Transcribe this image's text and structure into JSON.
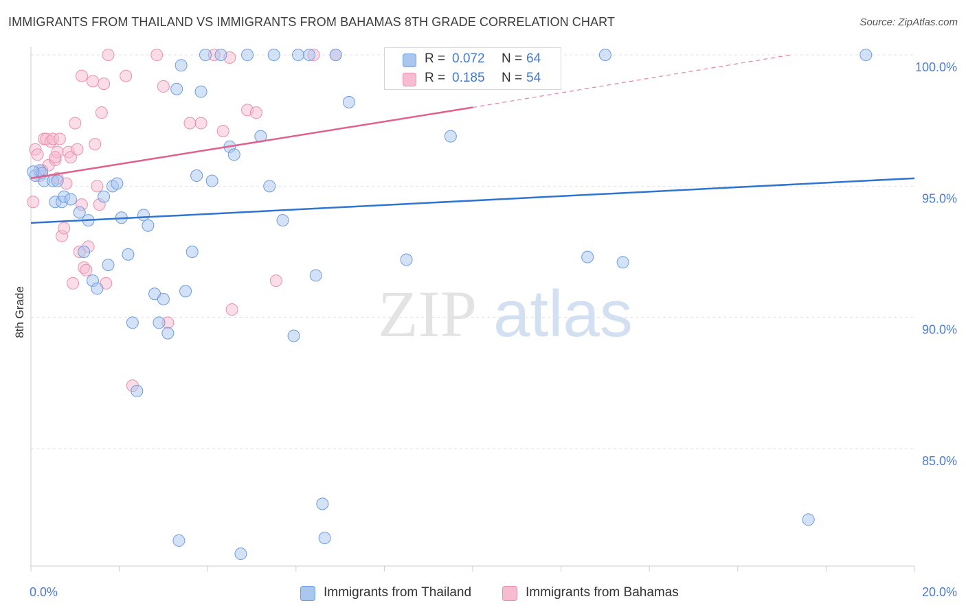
{
  "title": "IMMIGRANTS FROM THAILAND VS IMMIGRANTS FROM BAHAMAS 8TH GRADE CORRELATION CHART",
  "source": "Source: ZipAtlas.com",
  "watermark": {
    "zip": "ZIP",
    "atlas": "atlas"
  },
  "colors": {
    "thailand_fill": "#a9c6ef",
    "thailand_stroke": "#6b9ce0",
    "thailand_line": "#2e74d0",
    "bahamas_fill": "#f7bcd0",
    "bahamas_stroke": "#eb8fae",
    "bahamas_line": "#e0608e",
    "axis_text": "#4b7bd1",
    "grid": "#e2e2e2"
  },
  "legend": {
    "rows": [
      {
        "r_label": "R =",
        "r_value": "0.072",
        "n_label": "N =",
        "n_value": "64"
      },
      {
        "r_label": "R =",
        "r_value": "0.185",
        "n_label": "N =",
        "n_value": "54"
      }
    ]
  },
  "bottom_legend": {
    "items": [
      {
        "label": "Immigrants from Thailand"
      },
      {
        "label": "Immigrants from Bahamas"
      }
    ]
  },
  "chart_data": {
    "type": "scatter",
    "title": "IMMIGRANTS FROM THAILAND VS IMMIGRANTS FROM BAHAMAS 8TH GRADE CORRELATION CHART",
    "xlabel": "",
    "ylabel": "8th Grade",
    "xlim": [
      0,
      20
    ],
    "ylim": [
      80.5,
      100.7
    ],
    "x_tick_labels": [
      "0.0%",
      "20.0%"
    ],
    "y_ticks": [
      85,
      90,
      95,
      100
    ],
    "y_tick_labels": [
      "85.0%",
      "90.0%",
      "95.0%",
      "100.0%"
    ],
    "grid": true,
    "series": [
      {
        "name": "Immigrants from Thailand",
        "r": 0.072,
        "n": 64,
        "trend": {
          "x": [
            0,
            20
          ],
          "y": [
            93.6,
            95.3
          ]
        },
        "points": [
          [
            0.1,
            95.4
          ],
          [
            0.2,
            95.6
          ],
          [
            0.25,
            95.5
          ],
          [
            0.3,
            95.2
          ],
          [
            0.5,
            95.2
          ],
          [
            0.55,
            94.4
          ],
          [
            0.7,
            94.4
          ],
          [
            0.75,
            94.6
          ],
          [
            0.9,
            94.5
          ],
          [
            1.1,
            94.0
          ],
          [
            1.2,
            92.5
          ],
          [
            1.3,
            93.7
          ],
          [
            1.4,
            91.4
          ],
          [
            1.5,
            91.1
          ],
          [
            1.65,
            94.6
          ],
          [
            1.75,
            92.0
          ],
          [
            1.85,
            95.0
          ],
          [
            1.95,
            95.1
          ],
          [
            2.05,
            93.8
          ],
          [
            2.2,
            92.4
          ],
          [
            2.3,
            89.8
          ],
          [
            2.4,
            87.2
          ],
          [
            2.55,
            93.9
          ],
          [
            2.65,
            93.5
          ],
          [
            2.8,
            90.9
          ],
          [
            2.9,
            89.8
          ],
          [
            3.0,
            90.7
          ],
          [
            3.1,
            89.4
          ],
          [
            3.3,
            98.7
          ],
          [
            3.35,
            81.5
          ],
          [
            3.4,
            99.6
          ],
          [
            3.5,
            91.0
          ],
          [
            3.65,
            92.5
          ],
          [
            3.75,
            95.4
          ],
          [
            3.85,
            98.6
          ],
          [
            3.95,
            100.0
          ],
          [
            4.1,
            95.2
          ],
          [
            4.3,
            100.0
          ],
          [
            4.5,
            96.5
          ],
          [
            4.6,
            96.2
          ],
          [
            4.75,
            81.0
          ],
          [
            4.9,
            100.0
          ],
          [
            5.2,
            96.9
          ],
          [
            5.4,
            95.0
          ],
          [
            5.5,
            100.0
          ],
          [
            5.7,
            93.7
          ],
          [
            5.95,
            89.3
          ],
          [
            6.05,
            100.0
          ],
          [
            6.3,
            100.0
          ],
          [
            6.45,
            91.6
          ],
          [
            6.6,
            82.9
          ],
          [
            6.65,
            81.6
          ],
          [
            6.9,
            100.0
          ],
          [
            7.2,
            98.2
          ],
          [
            8.5,
            92.2
          ],
          [
            9.5,
            96.9
          ],
          [
            11.1,
            100.0
          ],
          [
            12.6,
            92.3
          ],
          [
            13.0,
            100.0
          ],
          [
            13.4,
            92.1
          ],
          [
            17.6,
            82.3
          ],
          [
            18.9,
            100.0
          ],
          [
            0.05,
            95.55
          ],
          [
            0.6,
            95.2
          ]
        ]
      },
      {
        "name": "Immigrants from Bahamas",
        "r": 0.185,
        "n": 54,
        "trend": {
          "x": [
            0,
            10
          ],
          "y": [
            95.3,
            98.0
          ]
        },
        "trend_dashed": {
          "x": [
            10,
            17.2
          ],
          "y": [
            98.0,
            100.0
          ]
        },
        "points": [
          [
            0.05,
            94.4
          ],
          [
            0.1,
            96.4
          ],
          [
            0.15,
            96.2
          ],
          [
            0.2,
            95.4
          ],
          [
            0.25,
            95.5
          ],
          [
            0.3,
            96.8
          ],
          [
            0.35,
            96.8
          ],
          [
            0.4,
            95.8
          ],
          [
            0.45,
            96.7
          ],
          [
            0.5,
            96.8
          ],
          [
            0.55,
            96.0
          ],
          [
            0.6,
            96.3
          ],
          [
            0.65,
            96.8
          ],
          [
            0.7,
            93.1
          ],
          [
            0.75,
            93.4
          ],
          [
            0.8,
            95.1
          ],
          [
            0.85,
            96.3
          ],
          [
            0.9,
            96.1
          ],
          [
            0.95,
            91.3
          ],
          [
            1.0,
            97.4
          ],
          [
            1.05,
            96.4
          ],
          [
            1.1,
            92.5
          ],
          [
            1.15,
            94.3
          ],
          [
            1.2,
            91.9
          ],
          [
            1.25,
            91.8
          ],
          [
            1.3,
            92.7
          ],
          [
            1.4,
            99.0
          ],
          [
            1.45,
            96.6
          ],
          [
            1.5,
            95.0
          ],
          [
            1.55,
            94.3
          ],
          [
            1.6,
            97.8
          ],
          [
            1.65,
            98.9
          ],
          [
            1.7,
            91.3
          ],
          [
            1.75,
            100.0
          ],
          [
            2.15,
            99.2
          ],
          [
            2.3,
            87.4
          ],
          [
            2.85,
            100.0
          ],
          [
            3.0,
            98.8
          ],
          [
            3.1,
            89.8
          ],
          [
            3.6,
            97.4
          ],
          [
            3.85,
            97.4
          ],
          [
            4.15,
            100.0
          ],
          [
            4.35,
            97.1
          ],
          [
            4.5,
            99.9
          ],
          [
            4.55,
            90.3
          ],
          [
            4.9,
            97.9
          ],
          [
            5.1,
            97.8
          ],
          [
            5.55,
            91.4
          ],
          [
            6.4,
            100.0
          ],
          [
            6.9,
            100.0
          ],
          [
            0.55,
            96.1
          ],
          [
            1.15,
            99.2
          ],
          [
            0.6,
            95.3
          ],
          [
            0.25,
            95.6
          ]
        ]
      }
    ]
  }
}
